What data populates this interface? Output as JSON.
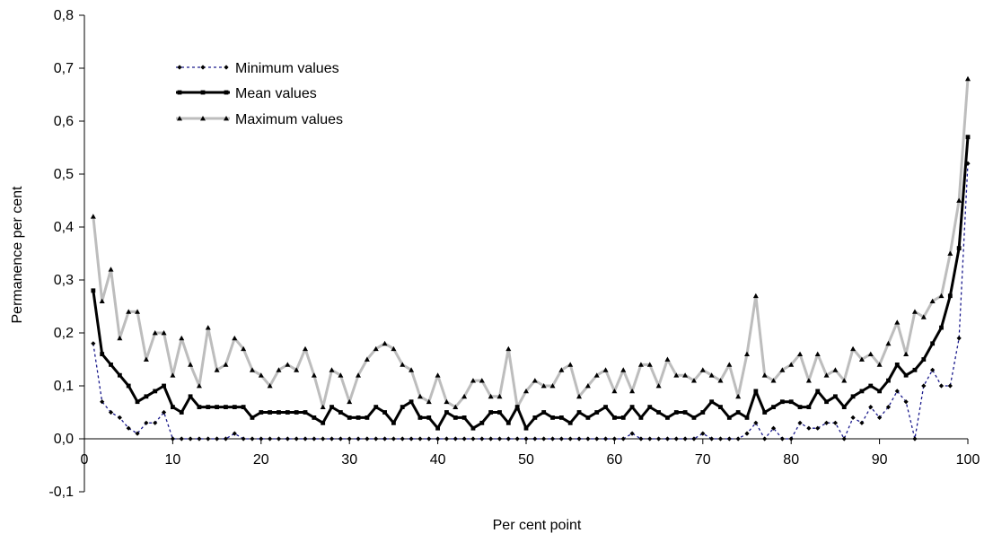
{
  "chart_data": {
    "type": "line",
    "title": "",
    "xlabel": "Per cent point",
    "ylabel": "Permanence per cent",
    "xlim": [
      0,
      100
    ],
    "ylim": [
      -0.1,
      0.8
    ],
    "x_ticks": [
      0,
      10,
      20,
      30,
      40,
      50,
      60,
      70,
      80,
      90,
      100
    ],
    "x_tick_labels": [
      "0",
      "10",
      "20",
      "30",
      "40",
      "50",
      "60",
      "70",
      "80",
      "90",
      "100"
    ],
    "y_ticks": [
      -0.1,
      0.0,
      0.1,
      0.2,
      0.3,
      0.4,
      0.5,
      0.6,
      0.7,
      0.8
    ],
    "y_tick_labels": [
      "-0,1",
      "0,0",
      "0,1",
      "0,2",
      "0,3",
      "0,4",
      "0,5",
      "0,6",
      "0,7",
      "0,8"
    ],
    "grid": false,
    "legend_position": "top-left",
    "x": [
      1,
      2,
      3,
      4,
      5,
      6,
      7,
      8,
      9,
      10,
      11,
      12,
      13,
      14,
      15,
      16,
      17,
      18,
      19,
      20,
      21,
      22,
      23,
      24,
      25,
      26,
      27,
      28,
      29,
      30,
      31,
      32,
      33,
      34,
      35,
      36,
      37,
      38,
      39,
      40,
      41,
      42,
      43,
      44,
      45,
      46,
      47,
      48,
      49,
      50,
      51,
      52,
      53,
      54,
      55,
      56,
      57,
      58,
      59,
      60,
      61,
      62,
      63,
      64,
      65,
      66,
      67,
      68,
      69,
      70,
      71,
      72,
      73,
      74,
      75,
      76,
      77,
      78,
      79,
      80,
      81,
      82,
      83,
      84,
      85,
      86,
      87,
      88,
      89,
      90,
      91,
      92,
      93,
      94,
      95,
      96,
      97,
      98,
      99,
      100
    ],
    "series": [
      {
        "name": "Minimum values",
        "color": "#1a1a8c",
        "style": "dotted",
        "marker": "diamond",
        "values": [
          0.18,
          0.07,
          0.05,
          0.04,
          0.02,
          0.01,
          0.03,
          0.03,
          0.05,
          0.0,
          0.0,
          0.0,
          0.0,
          0.0,
          0.0,
          0.0,
          0.01,
          0.0,
          0.0,
          0.0,
          0.0,
          0.0,
          0.0,
          0.0,
          0.0,
          0.0,
          0.0,
          0.0,
          0.0,
          0.0,
          0.0,
          0.0,
          0.0,
          0.0,
          0.0,
          0.0,
          0.0,
          0.0,
          0.0,
          0.0,
          0.0,
          0.0,
          0.0,
          0.0,
          0.0,
          0.0,
          0.0,
          0.0,
          0.0,
          0.0,
          0.0,
          0.0,
          0.0,
          0.0,
          0.0,
          0.0,
          0.0,
          0.0,
          0.0,
          0.0,
          0.0,
          0.01,
          0.0,
          0.0,
          0.0,
          0.0,
          0.0,
          0.0,
          0.0,
          0.01,
          0.0,
          0.0,
          0.0,
          0.0,
          0.01,
          0.03,
          0.0,
          0.02,
          0.0,
          0.0,
          0.03,
          0.02,
          0.02,
          0.03,
          0.03,
          0.0,
          0.04,
          0.03,
          0.06,
          0.04,
          0.06,
          0.09,
          0.07,
          0.0,
          0.1,
          0.13,
          0.1,
          0.1,
          0.19,
          0.52
        ]
      },
      {
        "name": "Mean values",
        "color": "#000000",
        "style": "solid",
        "marker": "square",
        "values": [
          0.28,
          0.16,
          0.14,
          0.12,
          0.1,
          0.07,
          0.08,
          0.09,
          0.1,
          0.06,
          0.05,
          0.08,
          0.06,
          0.06,
          0.06,
          0.06,
          0.06,
          0.06,
          0.04,
          0.05,
          0.05,
          0.05,
          0.05,
          0.05,
          0.05,
          0.04,
          0.03,
          0.06,
          0.05,
          0.04,
          0.04,
          0.04,
          0.06,
          0.05,
          0.03,
          0.06,
          0.07,
          0.04,
          0.04,
          0.02,
          0.05,
          0.04,
          0.04,
          0.02,
          0.03,
          0.05,
          0.05,
          0.03,
          0.06,
          0.02,
          0.04,
          0.05,
          0.04,
          0.04,
          0.03,
          0.05,
          0.04,
          0.05,
          0.06,
          0.04,
          0.04,
          0.06,
          0.04,
          0.06,
          0.05,
          0.04,
          0.05,
          0.05,
          0.04,
          0.05,
          0.07,
          0.06,
          0.04,
          0.05,
          0.04,
          0.09,
          0.05,
          0.06,
          0.07,
          0.07,
          0.06,
          0.06,
          0.09,
          0.07,
          0.08,
          0.06,
          0.08,
          0.09,
          0.1,
          0.09,
          0.11,
          0.14,
          0.12,
          0.13,
          0.15,
          0.18,
          0.21,
          0.27,
          0.36,
          0.57
        ]
      },
      {
        "name": "Maximum values",
        "color": "#bdbdbd",
        "style": "solid",
        "marker": "triangle",
        "values": [
          0.42,
          0.26,
          0.32,
          0.19,
          0.24,
          0.24,
          0.15,
          0.2,
          0.2,
          0.12,
          0.19,
          0.14,
          0.1,
          0.21,
          0.13,
          0.14,
          0.19,
          0.17,
          0.13,
          0.12,
          0.1,
          0.13,
          0.14,
          0.13,
          0.17,
          0.12,
          0.06,
          0.13,
          0.12,
          0.07,
          0.12,
          0.15,
          0.17,
          0.18,
          0.17,
          0.14,
          0.13,
          0.08,
          0.07,
          0.12,
          0.07,
          0.06,
          0.08,
          0.11,
          0.11,
          0.08,
          0.08,
          0.17,
          0.06,
          0.09,
          0.11,
          0.1,
          0.1,
          0.13,
          0.14,
          0.08,
          0.1,
          0.12,
          0.13,
          0.09,
          0.13,
          0.09,
          0.14,
          0.14,
          0.1,
          0.15,
          0.12,
          0.12,
          0.11,
          0.13,
          0.12,
          0.11,
          0.14,
          0.08,
          0.16,
          0.27,
          0.12,
          0.11,
          0.13,
          0.14,
          0.16,
          0.11,
          0.16,
          0.12,
          0.13,
          0.11,
          0.17,
          0.15,
          0.16,
          0.14,
          0.18,
          0.22,
          0.16,
          0.24,
          0.23,
          0.26,
          0.27,
          0.35,
          0.45,
          0.68
        ]
      }
    ]
  }
}
